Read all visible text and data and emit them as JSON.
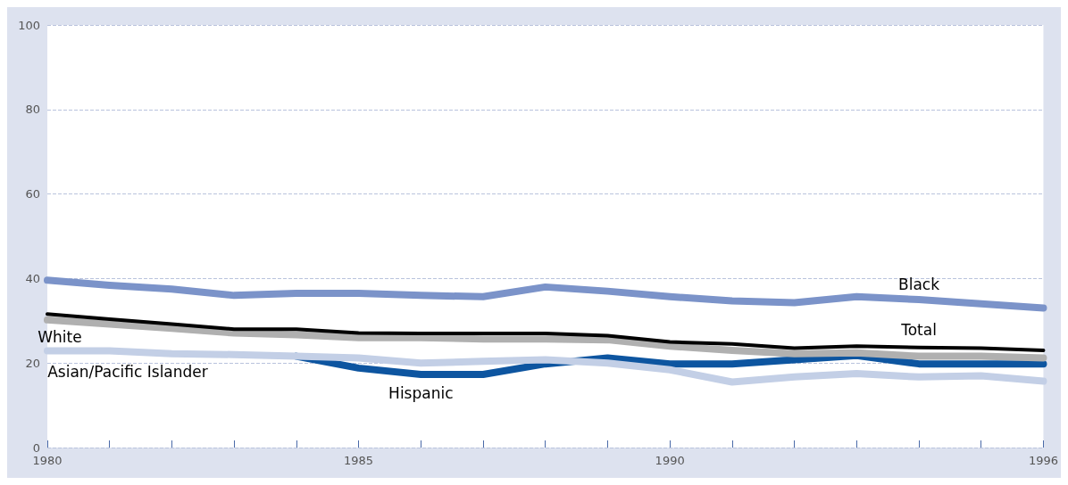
{
  "chart_data": {
    "type": "line",
    "x": [
      1980,
      1981,
      1982,
      1983,
      1984,
      1985,
      1986,
      1987,
      1988,
      1989,
      1990,
      1991,
      1992,
      1993,
      1994,
      1995,
      1996
    ],
    "series": [
      {
        "name": "Black",
        "color": "#7b93c9",
        "values": [
          39.6,
          38.4,
          37.5,
          36,
          36.5,
          36.5,
          36,
          35.7,
          38,
          37,
          35.7,
          34.7,
          34.3,
          35.7,
          35,
          34,
          33
        ]
      },
      {
        "name": "Total",
        "color": "#000000",
        "values": [
          31.6,
          30.4,
          29.2,
          28,
          28,
          27.1,
          27,
          27,
          27,
          26.5,
          25,
          24.5,
          23.5,
          24,
          23.7,
          23.5,
          23
        ]
      },
      {
        "name": "White",
        "color": "#b0b0b0",
        "values": [
          30.2,
          29.2,
          28.2,
          27.1,
          26.7,
          26,
          26,
          25.7,
          25.7,
          25.5,
          24,
          23,
          22.2,
          22.4,
          21.6,
          21.6,
          21.2
        ]
      },
      {
        "name": "Asian/Pacific Islander",
        "color": "#c3cfe6",
        "values": [
          22.9,
          22.9,
          22.2,
          22,
          21.6,
          21.2,
          20,
          20.4,
          20.8,
          20,
          18.4,
          15.5,
          16.7,
          17.5,
          16.7,
          17,
          15.7
        ]
      },
      {
        "name": "Hispanic",
        "color": "#0d55a0",
        "values": [
          null,
          null,
          null,
          null,
          21.6,
          18.8,
          17.3,
          17.3,
          19.8,
          21.2,
          19.8,
          19.8,
          20.8,
          21.8,
          19.8,
          19.8,
          19.8
        ]
      }
    ],
    "xlim": [
      1980,
      1996
    ],
    "xticks": [
      1980,
      {
        "value": 1981,
        "label": null
      },
      {
        "value": 1982,
        "label": null
      },
      {
        "value": 1983,
        "label": null
      },
      {
        "value": 1984,
        "label": null
      },
      1985,
      {
        "value": 1986,
        "label": null
      },
      {
        "value": 1987,
        "label": null
      },
      {
        "value": 1988,
        "label": null
      },
      {
        "value": 1989,
        "label": null
      },
      1990,
      {
        "value": 1991,
        "label": null
      },
      {
        "value": 1992,
        "label": null
      },
      {
        "value": 1993,
        "label": null
      },
      {
        "value": 1994,
        "label": null
      },
      {
        "value": 1995,
        "label": null
      },
      1996
    ],
    "ylim": [
      0,
      100
    ],
    "yticks": [
      0,
      20,
      40,
      60,
      80,
      100
    ],
    "grid": "y",
    "legend": false,
    "marker": "none",
    "line_style": "solid"
  }
}
